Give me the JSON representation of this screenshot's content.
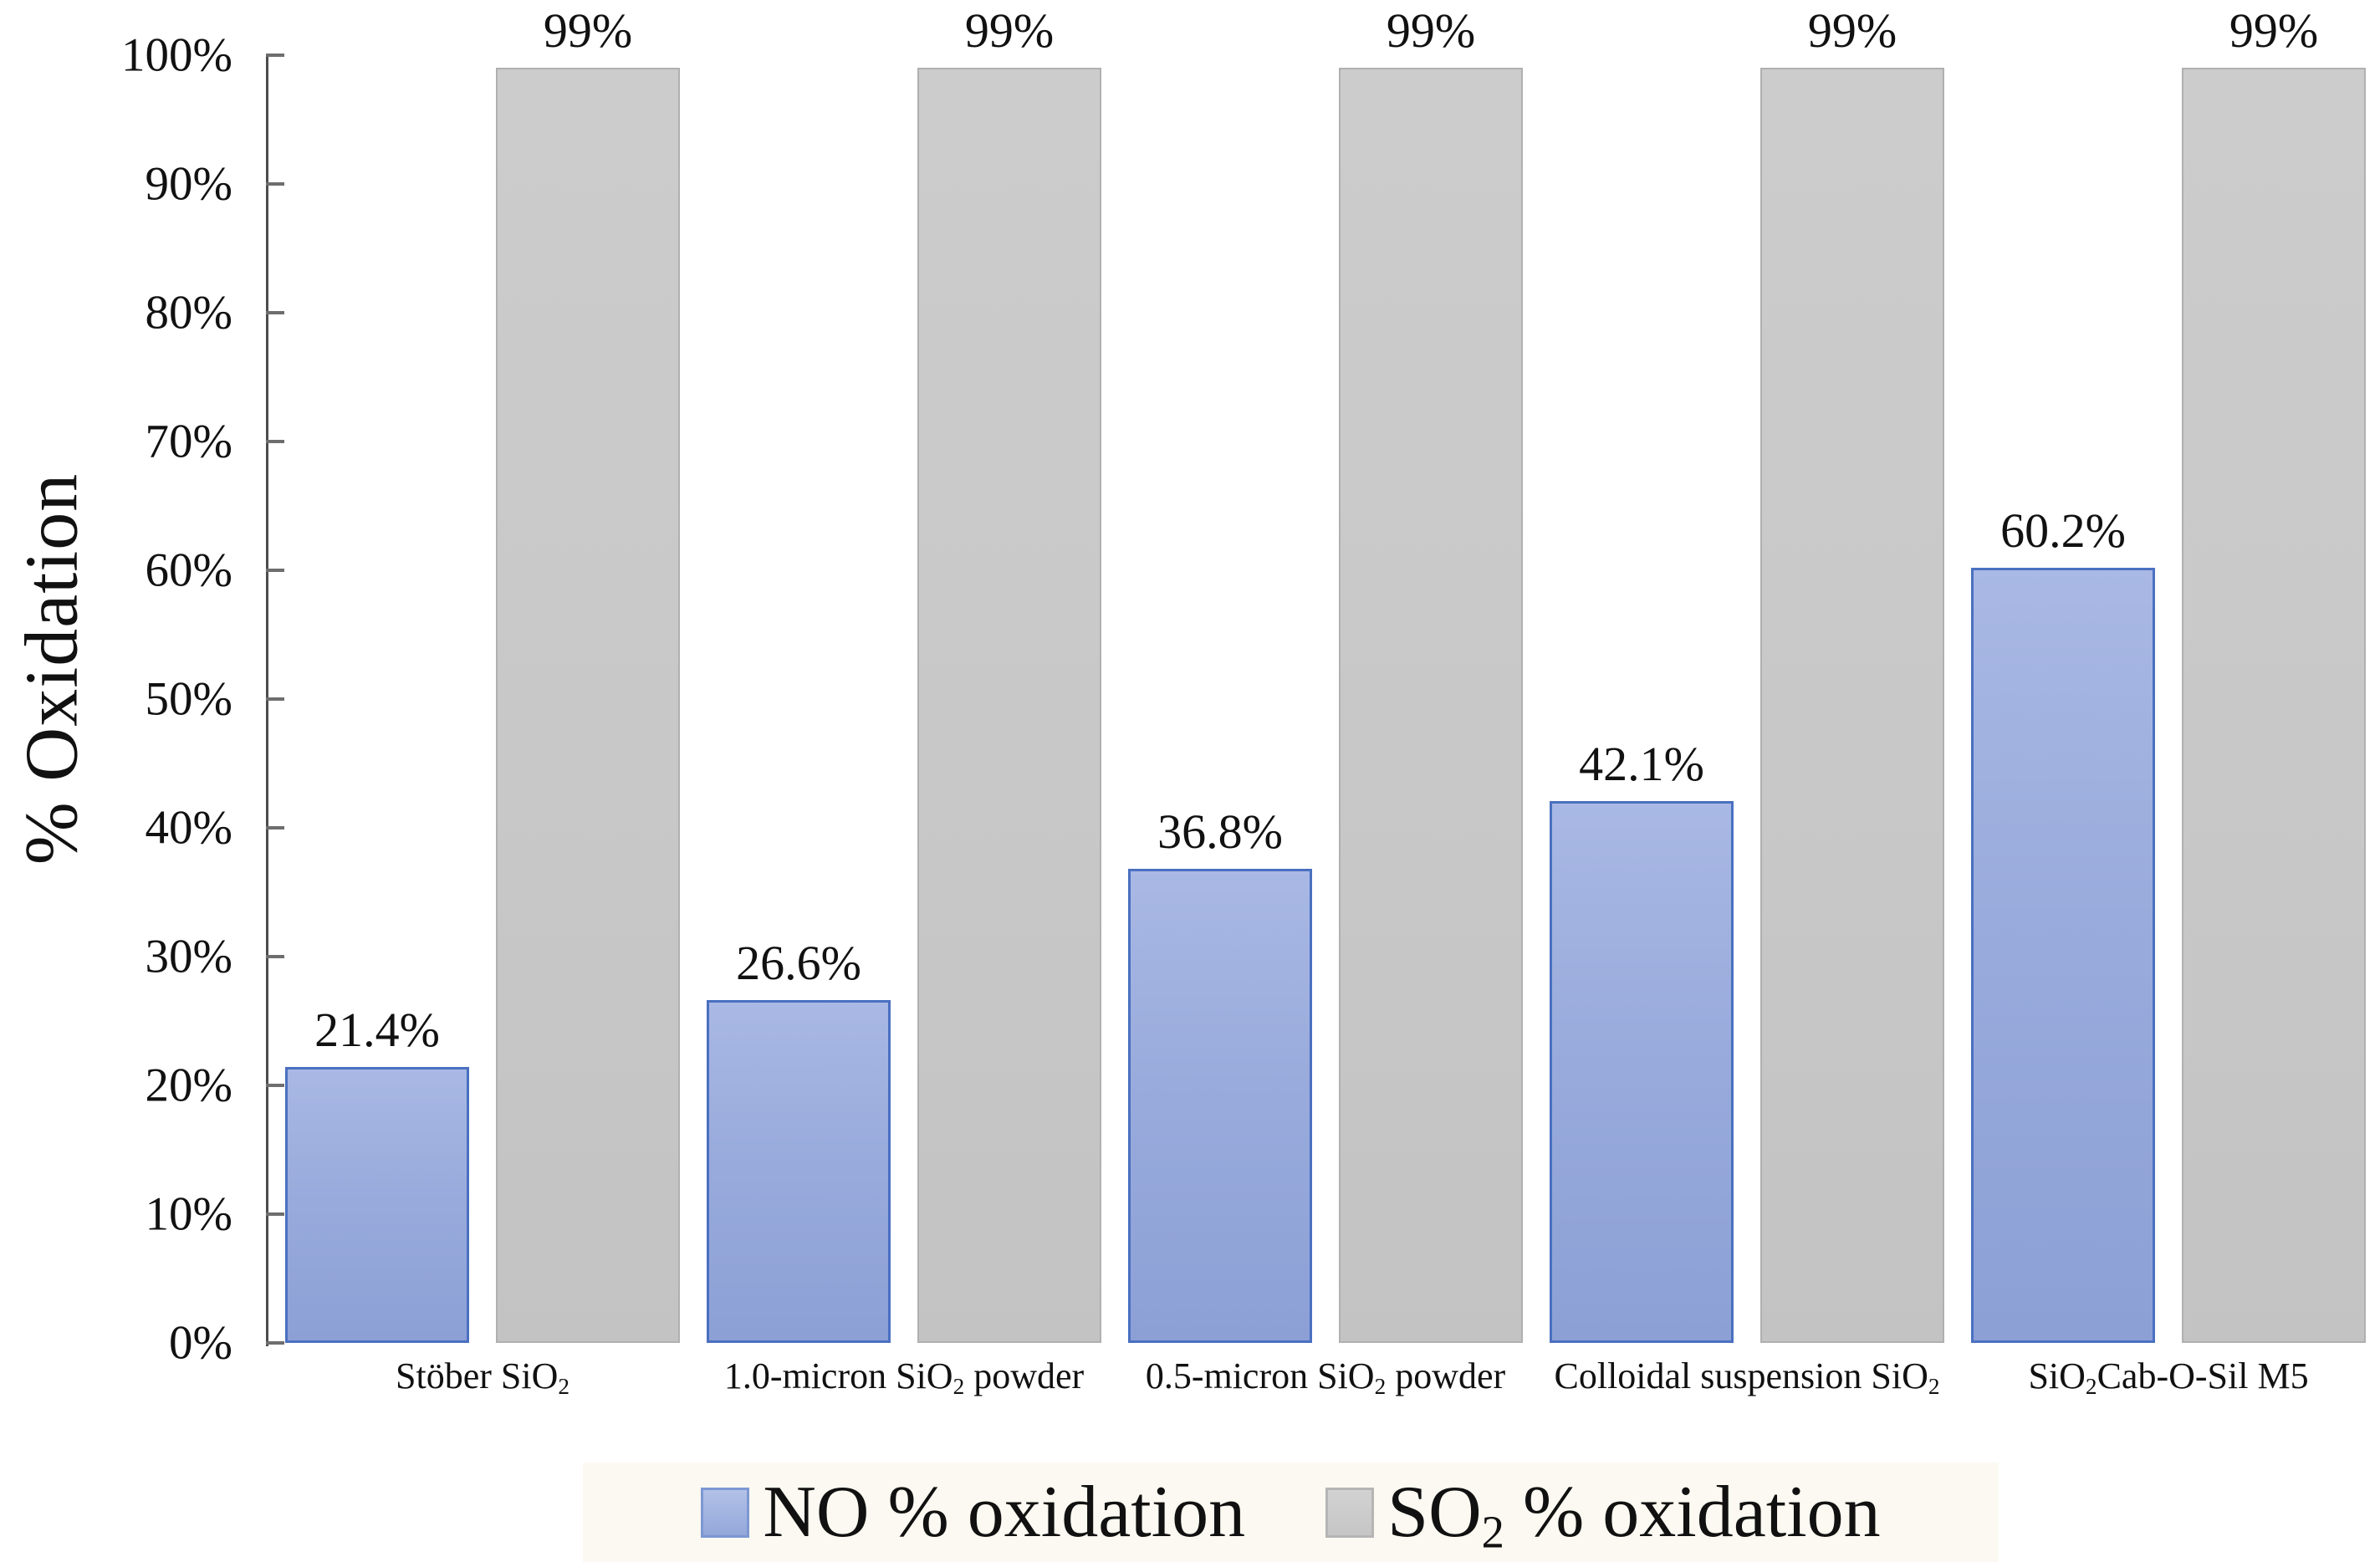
{
  "figure": {
    "y_axis_title": "% Oxidation",
    "legend": [
      {
        "label": "NO % oxidation",
        "color_key": "blue"
      },
      {
        "label": "SO_2_ % oxidation",
        "color_key": "gray"
      }
    ]
  },
  "colors": {
    "blue_fill_top": "#A9B8E4",
    "blue_fill_bottom": "#8CA0D6",
    "blue_border": "#4A70C0",
    "gray_fill_top": "#CCCCCC",
    "gray_fill_bottom": "#C3C3C3",
    "gray_border": "#B0B0B0",
    "axis": "#4D4D4D",
    "legend_background": "#FBF9F1",
    "text": "#111111"
  },
  "chart_data": {
    "type": "bar",
    "categories": [
      "Stöber SiO_2_",
      "1.0-micron SiO_2_ powder",
      "0.5-micron SiO_2_ powder",
      "Colloidal suspension SiO_2_",
      "SiO_2_Cab-O-Sil M5"
    ],
    "series": [
      {
        "name": "NO % oxidation",
        "color_key": "blue",
        "values": [
          21.4,
          26.6,
          36.8,
          42.1,
          60.2
        ],
        "labels": [
          "21.4%",
          "26.6%",
          "36.8%",
          "42.1%",
          "60.2%"
        ]
      },
      {
        "name": "SO_2_ % oxidation",
        "color_key": "gray",
        "values": [
          99,
          99,
          99,
          99,
          99
        ],
        "labels": [
          "99%",
          "99%",
          "99%",
          "99%",
          "99%"
        ]
      }
    ],
    "title": "",
    "xlabel": "",
    "ylabel": "% Oxidation",
    "ylim": [
      0,
      100
    ],
    "ytick_step": 10,
    "ytick_labels": [
      "0%",
      "10%",
      "20%",
      "30%",
      "40%",
      "50%",
      "60%",
      "70%",
      "80%",
      "90%",
      "100%"
    ],
    "grid": false,
    "legend_position": "bottom"
  }
}
